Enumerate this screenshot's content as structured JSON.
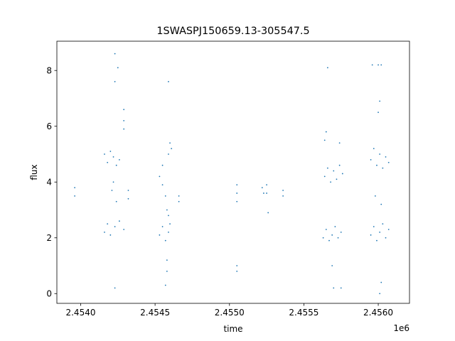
{
  "chart_data": {
    "type": "scatter",
    "title": "1SWASPJ150659.13-305547.5",
    "xlabel": "time",
    "ylabel": "flux",
    "x_offset_label": "1e6",
    "xlim": [
      2.45384,
      2.45621
    ],
    "ylim": [
      -0.35,
      9.05
    ],
    "x_ticks": [
      2.454,
      2.4545,
      2.455,
      2.4555,
      2.456
    ],
    "x_tick_labels": [
      "2.4540",
      "2.4545",
      "2.4550",
      "2.4555",
      "2.4560"
    ],
    "y_ticks": [
      0,
      2,
      4,
      6,
      8
    ],
    "y_tick_labels": [
      "0",
      "2",
      "4",
      "6",
      "8"
    ],
    "grid": false,
    "marker_color": "#1f77b4",
    "series": [
      {
        "points": [
          [
            2.45396,
            3.8
          ],
          [
            2.45396,
            3.5
          ],
          [
            2.45416,
            2.2
          ],
          [
            2.45418,
            2.5
          ],
          [
            2.4542,
            2.1
          ],
          [
            2.45423,
            2.4
          ],
          [
            2.45426,
            2.6
          ],
          [
            2.45429,
            2.3
          ],
          [
            2.45416,
            5.0
          ],
          [
            2.45418,
            4.7
          ],
          [
            2.4542,
            5.1
          ],
          [
            2.45422,
            4.9
          ],
          [
            2.45424,
            4.6
          ],
          [
            2.45426,
            4.8
          ],
          [
            2.45422,
            4.0
          ],
          [
            2.45424,
            3.3
          ],
          [
            2.45421,
            3.7
          ],
          [
            2.45423,
            7.6
          ],
          [
            2.45423,
            8.6
          ],
          [
            2.45425,
            8.1
          ],
          [
            2.45429,
            6.2
          ],
          [
            2.45429,
            6.6
          ],
          [
            2.45429,
            5.9
          ],
          [
            2.45432,
            3.7
          ],
          [
            2.45432,
            3.4
          ],
          [
            2.45423,
            0.2
          ],
          [
            2.45453,
            2.1
          ],
          [
            2.45455,
            2.4
          ],
          [
            2.45457,
            1.9
          ],
          [
            2.45459,
            2.2
          ],
          [
            2.4546,
            2.5
          ],
          [
            2.45453,
            4.2
          ],
          [
            2.45455,
            3.9
          ],
          [
            2.45457,
            3.5
          ],
          [
            2.45458,
            3.0
          ],
          [
            2.45459,
            2.8
          ],
          [
            2.45455,
            4.6
          ],
          [
            2.45459,
            5.0
          ],
          [
            2.4546,
            5.4
          ],
          [
            2.45461,
            5.2
          ],
          [
            2.45458,
            1.2
          ],
          [
            2.45458,
            0.8
          ],
          [
            2.45457,
            0.3
          ],
          [
            2.45459,
            7.6
          ],
          [
            2.45466,
            3.5
          ],
          [
            2.45466,
            3.3
          ],
          [
            2.45505,
            3.9
          ],
          [
            2.45505,
            3.6
          ],
          [
            2.45505,
            3.3
          ],
          [
            2.45505,
            1.0
          ],
          [
            2.45505,
            0.8
          ],
          [
            2.45522,
            3.8
          ],
          [
            2.45523,
            3.6
          ],
          [
            2.45525,
            3.9
          ],
          [
            2.45525,
            3.6
          ],
          [
            2.45526,
            2.9
          ],
          [
            2.45536,
            3.7
          ],
          [
            2.45536,
            3.5
          ],
          [
            2.45563,
            2.0
          ],
          [
            2.45565,
            2.3
          ],
          [
            2.45567,
            1.9
          ],
          [
            2.45569,
            2.1
          ],
          [
            2.45571,
            2.4
          ],
          [
            2.45573,
            2.0
          ],
          [
            2.45575,
            2.2
          ],
          [
            2.45564,
            4.2
          ],
          [
            2.45566,
            4.5
          ],
          [
            2.45568,
            4.0
          ],
          [
            2.4557,
            4.4
          ],
          [
            2.45572,
            4.1
          ],
          [
            2.45574,
            4.6
          ],
          [
            2.45576,
            4.3
          ],
          [
            2.45564,
            5.5
          ],
          [
            2.45565,
            5.8
          ],
          [
            2.45566,
            8.1
          ],
          [
            2.45569,
            1.0
          ],
          [
            2.4557,
            0.2
          ],
          [
            2.45575,
            0.2
          ],
          [
            2.45574,
            5.4
          ],
          [
            2.45595,
            2.1
          ],
          [
            2.45597,
            2.4
          ],
          [
            2.45599,
            1.9
          ],
          [
            2.45601,
            2.2
          ],
          [
            2.45603,
            2.5
          ],
          [
            2.45605,
            2.0
          ],
          [
            2.45607,
            2.3
          ],
          [
            2.45595,
            4.8
          ],
          [
            2.45597,
            5.2
          ],
          [
            2.45599,
            4.6
          ],
          [
            2.45601,
            5.0
          ],
          [
            2.45603,
            4.5
          ],
          [
            2.45605,
            4.9
          ],
          [
            2.45607,
            4.7
          ],
          [
            2.45598,
            3.5
          ],
          [
            2.45602,
            3.2
          ],
          [
            2.456,
            6.5
          ],
          [
            2.45601,
            6.9
          ],
          [
            2.45596,
            8.2
          ],
          [
            2.456,
            8.2
          ],
          [
            2.45602,
            8.2
          ],
          [
            2.45602,
            0.4
          ],
          [
            2.45601,
            0.0
          ]
        ]
      }
    ]
  }
}
